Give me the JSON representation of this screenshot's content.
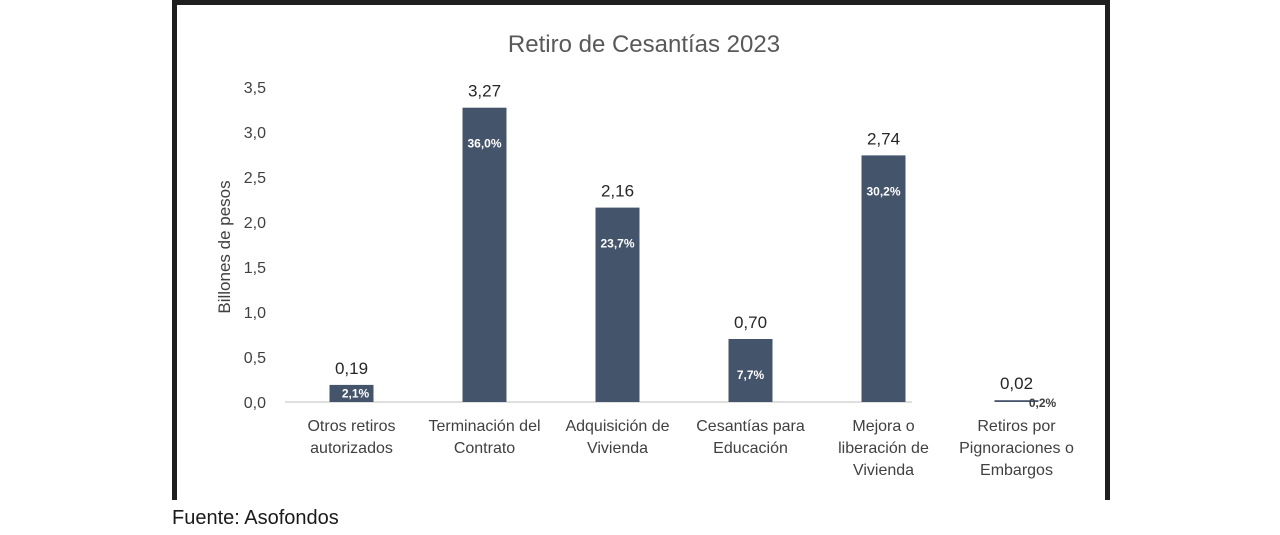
{
  "source": "Fuente: Asofondos",
  "colors": {
    "bar": "#44546a",
    "axis": "#bfbfbf",
    "text": "#404040",
    "title": "#595959"
  },
  "chart_data": {
    "type": "bar",
    "title": "Retiro de Cesantías 2023",
    "xlabel": "",
    "ylabel": "Billones de pesos",
    "ylim": [
      0,
      3.5
    ],
    "yticks": [
      "0,0",
      "0,5",
      "1,0",
      "1,5",
      "2,0",
      "2,5",
      "3,0",
      "3,5"
    ],
    "grid": false,
    "categories": [
      [
        "Otros retiros",
        "autorizados"
      ],
      [
        "Terminación del",
        "Contrato"
      ],
      [
        "Adquisición de",
        "Vivienda"
      ],
      [
        "Cesantías para",
        "Educación"
      ],
      [
        "Mejora o",
        "liberación de",
        "Vivienda"
      ],
      [
        "Retiros por",
        "Pignoraciones o",
        "Embargos"
      ]
    ],
    "values": [
      0.19,
      3.27,
      2.16,
      0.7,
      2.74,
      0.02
    ],
    "value_labels": [
      "0,19",
      "3,27",
      "2,16",
      "0,70",
      "2,74",
      "0,02"
    ],
    "percent_labels": [
      "2,1%",
      "36,0%",
      "23,7%",
      "7,7%",
      "30,2%",
      "0,2%"
    ]
  }
}
